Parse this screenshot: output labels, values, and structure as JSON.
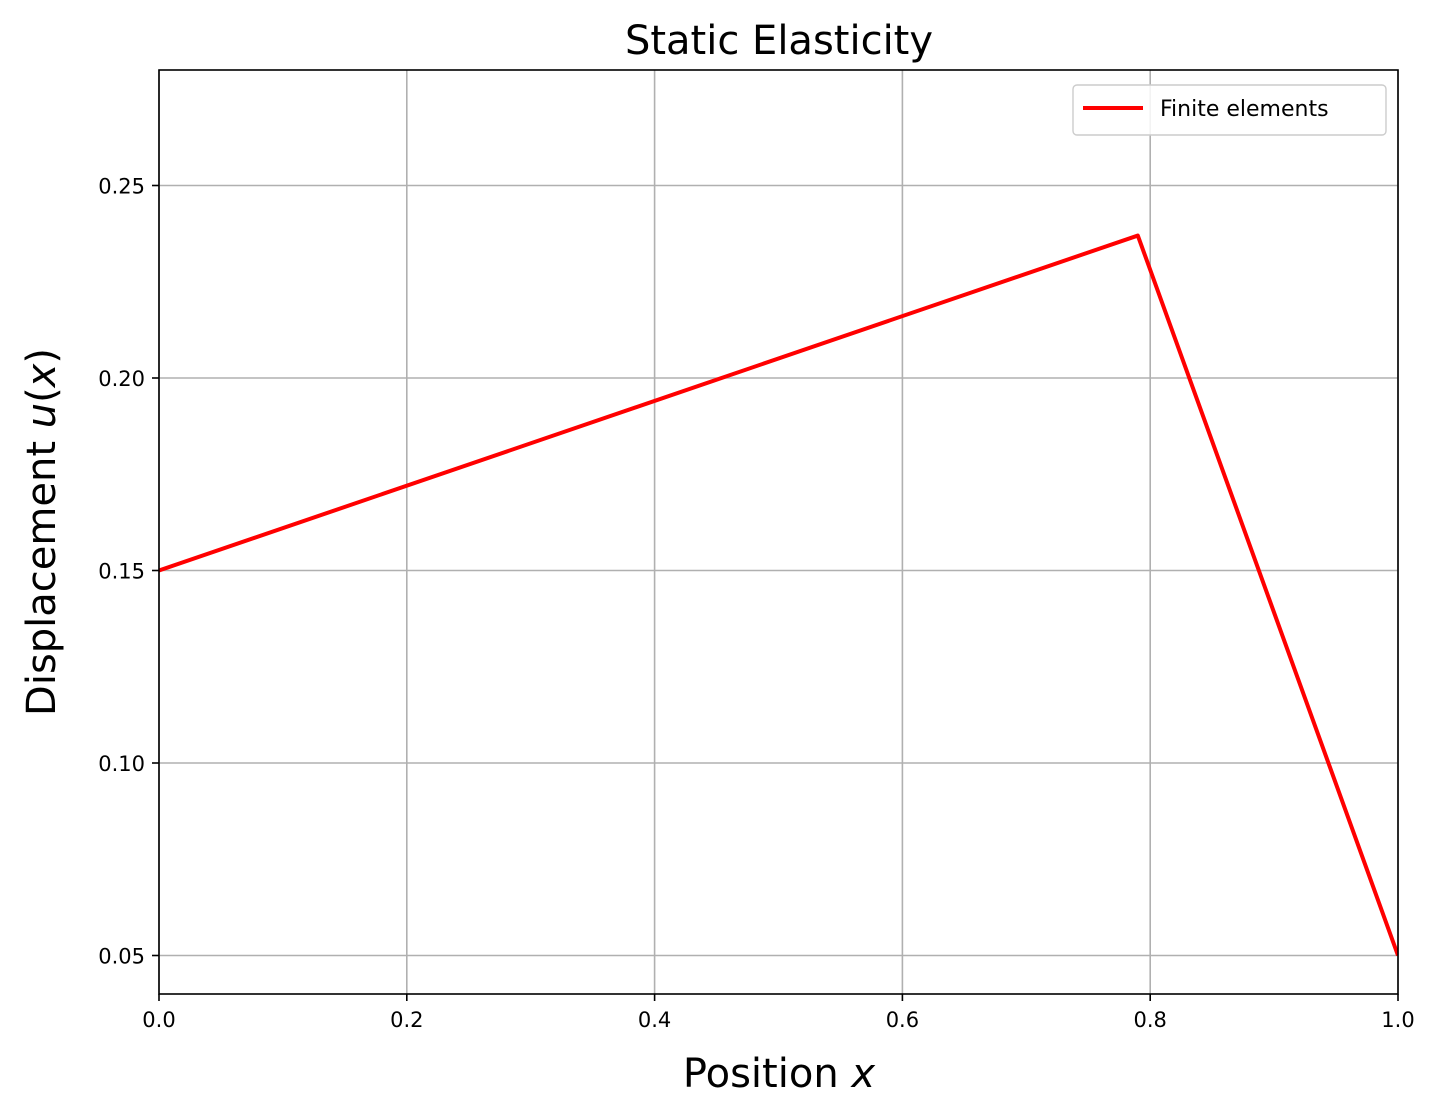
{
  "chart_data": {
    "type": "line",
    "title": "Static Elasticity",
    "xlabel": "Position x",
    "ylabel": "Displacement u(x)",
    "xlim": [
      0.0,
      1.0
    ],
    "ylim": [
      0.04,
      0.28
    ],
    "xticks": [
      0.0,
      0.2,
      0.4,
      0.6,
      0.8,
      1.0
    ],
    "xtick_labels": [
      "0.0",
      "0.2",
      "0.4",
      "0.6",
      "0.8",
      "1.0"
    ],
    "yticks": [
      0.05,
      0.1,
      0.15,
      0.2,
      0.25
    ],
    "ytick_labels": [
      "0.05",
      "0.10",
      "0.15",
      "0.20",
      "0.25"
    ],
    "grid": true,
    "legend_position": "top-right",
    "series": [
      {
        "name": "Finite elements",
        "color": "#ff0000",
        "x": [
          0.0,
          0.79,
          1.0
        ],
        "y": [
          0.15,
          0.237,
          0.05
        ]
      }
    ]
  }
}
